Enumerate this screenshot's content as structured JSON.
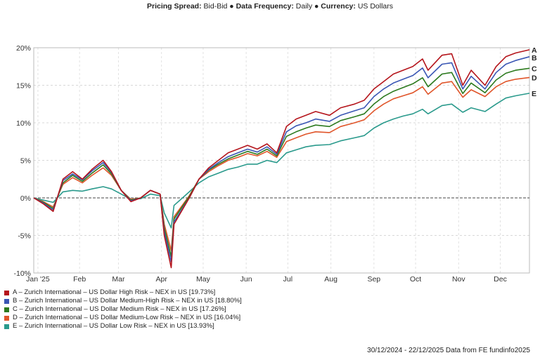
{
  "header": {
    "spread_label": "Pricing Spread:",
    "spread_value": "Bid-Bid",
    "sep1": " ● ",
    "freq_label": "Data Frequency:",
    "freq_value": "Daily",
    "sep2": " ● ",
    "currency_label": "Currency:",
    "currency_value": "US Dollars"
  },
  "footer": {
    "range": "30/12/2024 - 22/12/2025 Data from FE fundinfo2025"
  },
  "chart_data": {
    "type": "line",
    "y_ticks": [
      "20%",
      "15%",
      "10%",
      "5%",
      "0%",
      "-5%",
      "-10%"
    ],
    "ylim": [
      -10,
      20
    ],
    "x_range": [
      "2024-12-30",
      "2025-12-22"
    ],
    "x_ticks": [
      {
        "label": "Jan '25",
        "date": "2025-01-02"
      },
      {
        "label": "Feb",
        "date": "2025-02-01"
      },
      {
        "label": "Mar",
        "date": "2025-03-01"
      },
      {
        "label": "Apr",
        "date": "2025-04-01"
      },
      {
        "label": "May",
        "date": "2025-05-01"
      },
      {
        "label": "Jun",
        "date": "2025-06-01"
      },
      {
        "label": "Jul",
        "date": "2025-07-01"
      },
      {
        "label": "Aug",
        "date": "2025-08-01"
      },
      {
        "label": "Sep",
        "date": "2025-09-01"
      },
      {
        "label": "Oct",
        "date": "2025-10-01"
      },
      {
        "label": "Nov",
        "date": "2025-11-01"
      },
      {
        "label": "Dec",
        "date": "2025-12-01"
      }
    ],
    "grid": true,
    "zero_line": true,
    "series": [
      {
        "id": "A",
        "name": "A – Zurich International – US Dollar High Risk – NEX in US [19.73%]",
        "color": "#b5151c",
        "x": [
          "2024-12-30",
          "2025-01-06",
          "2025-01-13",
          "2025-01-20",
          "2025-01-27",
          "2025-02-03",
          "2025-02-10",
          "2025-02-18",
          "2025-02-24",
          "2025-03-03",
          "2025-03-10",
          "2025-03-17",
          "2025-03-24",
          "2025-03-31",
          "2025-04-03",
          "2025-04-08",
          "2025-04-10",
          "2025-04-21",
          "2025-04-28",
          "2025-05-05",
          "2025-05-12",
          "2025-05-19",
          "2025-05-26",
          "2025-06-02",
          "2025-06-09",
          "2025-06-16",
          "2025-06-23",
          "2025-06-30",
          "2025-07-07",
          "2025-07-14",
          "2025-07-21",
          "2025-07-31",
          "2025-08-08",
          "2025-08-18",
          "2025-08-25",
          "2025-09-01",
          "2025-09-08",
          "2025-09-15",
          "2025-09-22",
          "2025-09-29",
          "2025-10-06",
          "2025-10-10",
          "2025-10-20",
          "2025-10-27",
          "2025-11-04",
          "2025-11-10",
          "2025-11-20",
          "2025-11-28",
          "2025-12-05",
          "2025-12-12",
          "2025-12-22"
        ],
        "y": [
          0,
          -0.8,
          -1.8,
          2.5,
          3.5,
          2.5,
          3.8,
          5.0,
          3.5,
          1.0,
          -0.5,
          0.0,
          1.0,
          0.5,
          -5.0,
          -9.3,
          -3.5,
          0.0,
          2.5,
          4.0,
          5.0,
          6.0,
          6.5,
          7.0,
          6.5,
          7.2,
          6.0,
          9.5,
          10.5,
          11.0,
          11.5,
          11.0,
          12.0,
          12.5,
          13.0,
          14.5,
          15.5,
          16.5,
          17.0,
          17.5,
          18.5,
          17.0,
          19.0,
          19.2,
          15.0,
          17.0,
          15.0,
          17.5,
          18.8,
          19.3,
          19.73
        ]
      },
      {
        "id": "B",
        "name": "B – Zurich International – US Dollar Medium-High Risk – NEX in US [18.80%]",
        "color": "#3a56b4",
        "x": [
          "2024-12-30",
          "2025-01-06",
          "2025-01-13",
          "2025-01-20",
          "2025-01-27",
          "2025-02-03",
          "2025-02-10",
          "2025-02-18",
          "2025-02-24",
          "2025-03-03",
          "2025-03-10",
          "2025-03-17",
          "2025-03-24",
          "2025-03-31",
          "2025-04-03",
          "2025-04-08",
          "2025-04-10",
          "2025-04-21",
          "2025-04-28",
          "2025-05-05",
          "2025-05-12",
          "2025-05-19",
          "2025-05-26",
          "2025-06-02",
          "2025-06-09",
          "2025-06-16",
          "2025-06-23",
          "2025-06-30",
          "2025-07-07",
          "2025-07-14",
          "2025-07-21",
          "2025-07-31",
          "2025-08-08",
          "2025-08-18",
          "2025-08-25",
          "2025-09-01",
          "2025-09-08",
          "2025-09-15",
          "2025-09-22",
          "2025-09-29",
          "2025-10-06",
          "2025-10-10",
          "2025-10-20",
          "2025-10-27",
          "2025-11-04",
          "2025-11-10",
          "2025-11-20",
          "2025-11-28",
          "2025-12-05",
          "2025-12-12",
          "2025-12-22"
        ],
        "y": [
          0,
          -0.7,
          -1.6,
          2.3,
          3.2,
          2.4,
          3.6,
          4.7,
          3.4,
          1.0,
          -0.4,
          0.0,
          1.0,
          0.5,
          -4.5,
          -8.5,
          -3.2,
          0.0,
          2.5,
          3.8,
          4.7,
          5.5,
          6.0,
          6.5,
          6.1,
          6.8,
          5.8,
          8.8,
          9.6,
          10.0,
          10.5,
          10.2,
          11.0,
          11.6,
          12.0,
          13.5,
          14.5,
          15.3,
          15.8,
          16.3,
          17.3,
          16.0,
          17.8,
          18.0,
          14.5,
          16.2,
          14.5,
          16.7,
          17.8,
          18.3,
          18.8
        ]
      },
      {
        "id": "C",
        "name": "C – Zurich International – US Dollar Medium Risk – NEX in US [17.26%]",
        "color": "#2c7a1e",
        "x": [
          "2024-12-30",
          "2025-01-06",
          "2025-01-13",
          "2025-01-20",
          "2025-01-27",
          "2025-02-03",
          "2025-02-10",
          "2025-02-18",
          "2025-02-24",
          "2025-03-03",
          "2025-03-10",
          "2025-03-17",
          "2025-03-24",
          "2025-03-31",
          "2025-04-03",
          "2025-04-08",
          "2025-04-10",
          "2025-04-21",
          "2025-04-28",
          "2025-05-05",
          "2025-05-12",
          "2025-05-19",
          "2025-05-26",
          "2025-06-02",
          "2025-06-09",
          "2025-06-16",
          "2025-06-23",
          "2025-06-30",
          "2025-07-07",
          "2025-07-14",
          "2025-07-21",
          "2025-07-31",
          "2025-08-08",
          "2025-08-18",
          "2025-08-25",
          "2025-09-01",
          "2025-09-08",
          "2025-09-15",
          "2025-09-22",
          "2025-09-29",
          "2025-10-06",
          "2025-10-10",
          "2025-10-20",
          "2025-10-27",
          "2025-11-04",
          "2025-11-10",
          "2025-11-20",
          "2025-11-28",
          "2025-12-05",
          "2025-12-12",
          "2025-12-22"
        ],
        "y": [
          0,
          -0.6,
          -1.4,
          2.0,
          3.0,
          2.2,
          3.3,
          4.4,
          3.2,
          1.0,
          -0.3,
          0.0,
          1.0,
          0.5,
          -4.0,
          -7.8,
          -2.8,
          0.2,
          2.5,
          3.7,
          4.5,
          5.2,
          5.7,
          6.2,
          5.8,
          6.5,
          5.6,
          8.2,
          8.8,
          9.3,
          9.7,
          9.5,
          10.3,
          10.8,
          11.2,
          12.5,
          13.5,
          14.2,
          14.7,
          15.2,
          16.0,
          14.8,
          16.5,
          16.7,
          13.9,
          15.3,
          14.0,
          15.7,
          16.6,
          17.0,
          17.26
        ]
      },
      {
        "id": "D",
        "name": "D – Zurich International – US Dollar Medium-Low Risk – NEX in US [16.04%]",
        "color": "#e0552a",
        "x": [
          "2024-12-30",
          "2025-01-06",
          "2025-01-13",
          "2025-01-20",
          "2025-01-27",
          "2025-02-03",
          "2025-02-10",
          "2025-02-18",
          "2025-02-24",
          "2025-03-03",
          "2025-03-10",
          "2025-03-17",
          "2025-03-24",
          "2025-03-31",
          "2025-04-03",
          "2025-04-08",
          "2025-04-10",
          "2025-04-21",
          "2025-04-28",
          "2025-05-05",
          "2025-05-12",
          "2025-05-19",
          "2025-05-26",
          "2025-06-02",
          "2025-06-09",
          "2025-06-16",
          "2025-06-23",
          "2025-06-30",
          "2025-07-07",
          "2025-07-14",
          "2025-07-21",
          "2025-07-31",
          "2025-08-08",
          "2025-08-18",
          "2025-08-25",
          "2025-09-01",
          "2025-09-08",
          "2025-09-15",
          "2025-09-22",
          "2025-09-29",
          "2025-10-06",
          "2025-10-10",
          "2025-10-20",
          "2025-10-27",
          "2025-11-04",
          "2025-11-10",
          "2025-11-20",
          "2025-11-28",
          "2025-12-05",
          "2025-12-12",
          "2025-12-22"
        ],
        "y": [
          0,
          -0.5,
          -1.2,
          1.8,
          2.7,
          2.0,
          3.0,
          4.0,
          3.0,
          1.0,
          -0.2,
          0.0,
          1.0,
          0.5,
          -3.5,
          -7.0,
          -2.5,
          0.3,
          2.5,
          3.5,
          4.3,
          5.0,
          5.4,
          5.9,
          5.6,
          6.2,
          5.4,
          7.5,
          8.0,
          8.5,
          8.8,
          8.7,
          9.5,
          10.0,
          10.4,
          11.6,
          12.5,
          13.2,
          13.6,
          14.0,
          14.8,
          13.8,
          15.3,
          15.5,
          13.4,
          14.4,
          13.5,
          14.8,
          15.5,
          15.8,
          16.04
        ]
      },
      {
        "id": "E",
        "name": "E – Zurich International – US Dollar Low Risk – NEX in US [13.93%]",
        "color": "#2a9a8c",
        "x": [
          "2024-12-30",
          "2025-01-06",
          "2025-01-13",
          "2025-01-20",
          "2025-01-27",
          "2025-02-03",
          "2025-02-10",
          "2025-02-18",
          "2025-02-24",
          "2025-03-03",
          "2025-03-10",
          "2025-03-17",
          "2025-03-24",
          "2025-03-31",
          "2025-04-03",
          "2025-04-08",
          "2025-04-10",
          "2025-04-21",
          "2025-04-28",
          "2025-05-05",
          "2025-05-12",
          "2025-05-19",
          "2025-05-26",
          "2025-06-02",
          "2025-06-09",
          "2025-06-16",
          "2025-06-23",
          "2025-06-30",
          "2025-07-07",
          "2025-07-14",
          "2025-07-21",
          "2025-07-31",
          "2025-08-08",
          "2025-08-18",
          "2025-08-25",
          "2025-09-01",
          "2025-09-08",
          "2025-09-15",
          "2025-09-22",
          "2025-09-29",
          "2025-10-06",
          "2025-10-10",
          "2025-10-20",
          "2025-10-27",
          "2025-11-04",
          "2025-11-10",
          "2025-11-20",
          "2025-11-28",
          "2025-12-05",
          "2025-12-12",
          "2025-12-22"
        ],
        "y": [
          0,
          -0.3,
          -0.6,
          0.8,
          1.0,
          0.9,
          1.2,
          1.5,
          1.2,
          0.5,
          -0.2,
          -0.1,
          0.5,
          0.3,
          -2.0,
          -4.0,
          -1.0,
          0.8,
          2.0,
          2.8,
          3.3,
          3.8,
          4.1,
          4.5,
          4.5,
          5.0,
          4.7,
          6.0,
          6.4,
          6.8,
          7.0,
          7.1,
          7.6,
          8.0,
          8.3,
          9.3,
          10.0,
          10.5,
          10.9,
          11.2,
          11.8,
          11.2,
          12.3,
          12.5,
          11.4,
          12.0,
          11.5,
          12.5,
          13.3,
          13.6,
          13.93
        ]
      }
    ]
  }
}
